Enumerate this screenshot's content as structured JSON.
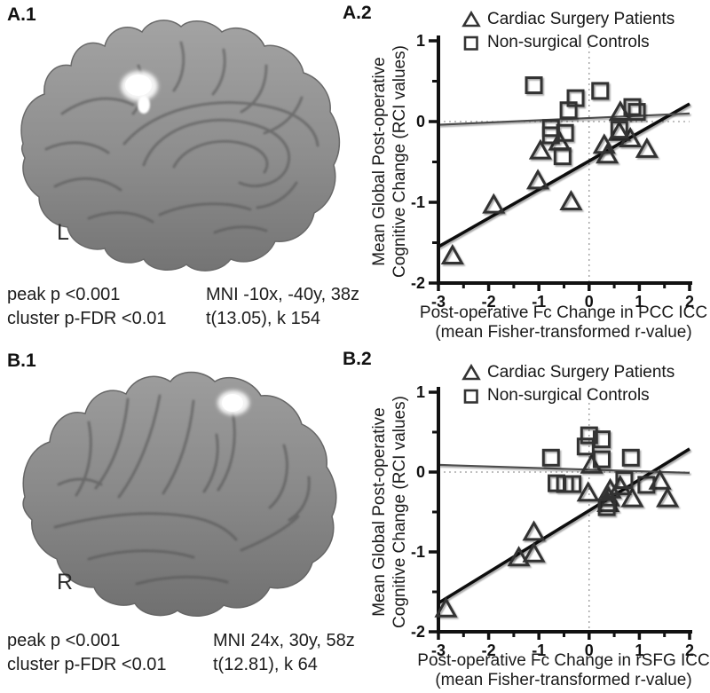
{
  "figure": {
    "background": "#ffffff"
  },
  "panels": {
    "a1": {
      "label": "A.1",
      "hemisphere": "L",
      "stats_left": [
        "peak p <0.001",
        "cluster p-FDR <0.01"
      ],
      "stats_right": [
        "MNI -10x, -40y, 38z",
        "t(13.05), k 154"
      ]
    },
    "a2": {
      "label": "A.2"
    },
    "b1": {
      "label": "B.1",
      "hemisphere": "R",
      "stats_left": [
        "peak p <0.001",
        "cluster p-FDR <0.01"
      ],
      "stats_right": [
        "MNI 24x, 30y, 58z",
        "t(12.81), k 64"
      ]
    },
    "b2": {
      "label": "B.2"
    }
  },
  "chart_data": [
    {
      "id": "a2",
      "type": "scatter",
      "xlabel": [
        "Post-operative Fc Change in PCC ICC",
        "(mean Fisher-transformed r-value)"
      ],
      "ylabel": [
        "Mean Global Post-operative",
        "Cognitive Change (RCI values)"
      ],
      "xlim": [
        -3,
        2
      ],
      "ylim": [
        -2,
        1
      ],
      "xticks": [
        -3,
        -2,
        -1,
        0,
        1,
        2
      ],
      "yticks": [
        1,
        0,
        -1,
        -2
      ],
      "minor_tick_step": 0.5,
      "ref_line_x": 0,
      "ref_line_y": 0,
      "legend": [
        {
          "marker": "triangle",
          "label": "Cardiac Surgery Patients"
        },
        {
          "marker": "square",
          "label": "Non-surgical Controls"
        }
      ],
      "series": [
        {
          "name": "Cardiac Surgery Patients",
          "marker": "triangle",
          "points": [
            [
              -2.72,
              -1.67
            ],
            [
              -1.9,
              -1.04
            ],
            [
              -1.02,
              -0.74
            ],
            [
              -0.97,
              -0.37
            ],
            [
              -0.59,
              -0.26
            ],
            [
              -0.36,
              -1.0
            ],
            [
              0.3,
              -0.3
            ],
            [
              0.36,
              -0.42
            ],
            [
              0.62,
              0.11
            ],
            [
              0.6,
              -0.14
            ],
            [
              0.82,
              -0.22
            ],
            [
              1.15,
              -0.35
            ]
          ]
        },
        {
          "name": "Non-surgical Controls",
          "marker": "square",
          "points": [
            [
              -1.1,
              0.45
            ],
            [
              -0.76,
              -0.08
            ],
            [
              -0.76,
              -0.17
            ],
            [
              -0.48,
              -0.14
            ],
            [
              -0.53,
              -0.43
            ],
            [
              -0.41,
              0.14
            ],
            [
              -0.27,
              0.29
            ],
            [
              0.22,
              0.38
            ],
            [
              0.6,
              -0.1
            ],
            [
              0.86,
              0.18
            ],
            [
              0.95,
              0.12
            ]
          ]
        }
      ],
      "fit_lines": [
        {
          "name": "patients",
          "start": [
            -3,
            -1.55
          ],
          "end": [
            2,
            0.22
          ],
          "color": "#101010",
          "width": 3.5
        },
        {
          "name": "controls",
          "start": [
            -3,
            -0.04
          ],
          "end": [
            2,
            0.1
          ],
          "color": "#4d4d4d",
          "width": 2.2
        }
      ]
    },
    {
      "id": "b2",
      "type": "scatter",
      "xlabel": [
        "Post-operative Fc Change in rSFG ICC",
        "(mean Fisher-transformed r-value)"
      ],
      "ylabel": [
        "Mean Global Post-operative",
        "Cognitive Change (RCI values)"
      ],
      "xlim": [
        -3,
        2
      ],
      "ylim": [
        -2,
        1
      ],
      "xticks": [
        -3,
        -2,
        -1,
        0,
        1,
        2
      ],
      "yticks": [
        1,
        0,
        -1,
        -2
      ],
      "minor_tick_step": 0.5,
      "ref_line_x": 0,
      "ref_line_y": 0,
      "legend": [
        {
          "marker": "triangle",
          "label": "Cardiac Surgery Patients"
        },
        {
          "marker": "square",
          "label": "Non-surgical Controls"
        }
      ],
      "series": [
        {
          "name": "Cardiac Surgery Patients",
          "marker": "triangle",
          "points": [
            [
              -2.85,
              -1.72
            ],
            [
              -1.4,
              -1.08
            ],
            [
              -1.1,
              -1.03
            ],
            [
              -1.1,
              -0.76
            ],
            [
              -0.02,
              -0.27
            ],
            [
              0.05,
              0.08
            ],
            [
              0.42,
              -0.23
            ],
            [
              0.39,
              -0.33
            ],
            [
              0.38,
              -0.4
            ],
            [
              0.62,
              -0.19
            ],
            [
              0.86,
              -0.34
            ],
            [
              1.41,
              -0.12
            ],
            [
              1.56,
              -0.34
            ]
          ]
        },
        {
          "name": "Non-surgical Controls",
          "marker": "square",
          "points": [
            [
              -0.76,
              0.18
            ],
            [
              0.0,
              0.46
            ],
            [
              -0.07,
              0.32
            ],
            [
              0.25,
              0.41
            ],
            [
              0.25,
              0.16
            ],
            [
              0.83,
              0.18
            ],
            [
              -0.65,
              -0.14
            ],
            [
              -0.48,
              -0.15
            ],
            [
              -0.33,
              -0.15
            ],
            [
              0.35,
              -0.44
            ],
            [
              0.7,
              -0.1
            ],
            [
              1.14,
              -0.16
            ]
          ]
        }
      ],
      "fit_lines": [
        {
          "name": "patients",
          "start": [
            -3,
            -1.64
          ],
          "end": [
            2,
            0.29
          ],
          "color": "#101010",
          "width": 3.5
        },
        {
          "name": "controls",
          "start": [
            -3,
            0.09
          ],
          "end": [
            2,
            -0.01
          ],
          "color": "#4d4d4d",
          "width": 2.2
        }
      ]
    }
  ],
  "colors": {
    "marker_stroke": "#333333",
    "axis": "#111111",
    "ref_line": "#9a9a9a",
    "brain_base": "#8d8d8d",
    "cluster": "#ffffff"
  }
}
